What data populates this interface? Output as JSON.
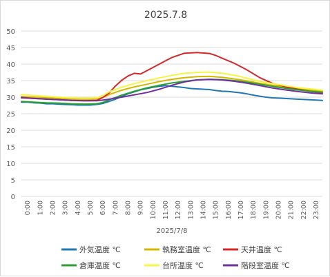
{
  "chart_data": {
    "type": "line",
    "title": "2025.7.8",
    "xlabel": "2025/7/8",
    "ylabel": "",
    "ylim": [
      0,
      50
    ],
    "y_ticks": [
      0,
      5,
      10,
      15,
      20,
      25,
      30,
      35,
      40,
      45,
      50
    ],
    "x_tick_labels": [
      "0:00",
      "1:00",
      "2:00",
      "3:00",
      "4:00",
      "5:00",
      "6:00",
      "7:00",
      "8:00",
      "9:00",
      "10:00",
      "11:00",
      "12:00",
      "13:00",
      "14:00",
      "15:00",
      "16:00",
      "17:00",
      "18:00",
      "19:00",
      "20:00",
      "21:00",
      "22:00",
      "23:00"
    ],
    "x_range_hours": [
      0,
      24
    ],
    "grid": true,
    "legend_position": "bottom",
    "series": [
      {
        "name": "外気温度 ℃",
        "color": "#1f77b4",
        "points": [
          [
            0,
            28.5
          ],
          [
            0.5,
            28.5
          ],
          [
            1,
            28.3
          ],
          [
            1.5,
            28.2
          ],
          [
            2,
            28.0
          ],
          [
            2.5,
            28.0
          ],
          [
            3,
            27.9
          ],
          [
            3.5,
            27.8
          ],
          [
            4,
            27.7
          ],
          [
            4.5,
            27.6
          ],
          [
            5,
            27.6
          ],
          [
            5.5,
            27.6
          ],
          [
            6,
            27.8
          ],
          [
            6.5,
            28.1
          ],
          [
            7,
            28.7
          ],
          [
            7.5,
            29.4
          ],
          [
            8,
            30.2
          ],
          [
            8.5,
            31.0
          ],
          [
            9,
            31.6
          ],
          [
            9.5,
            32.2
          ],
          [
            10,
            32.6
          ],
          [
            10.5,
            33.0
          ],
          [
            11,
            33.3
          ],
          [
            11.5,
            33.5
          ],
          [
            12,
            33.3
          ],
          [
            12.5,
            33.1
          ],
          [
            13,
            32.9
          ],
          [
            13.5,
            32.6
          ],
          [
            14,
            32.5
          ],
          [
            14.5,
            32.4
          ],
          [
            15,
            32.3
          ],
          [
            15.5,
            32.0
          ],
          [
            16,
            31.8
          ],
          [
            16.5,
            31.7
          ],
          [
            17,
            31.5
          ],
          [
            17.5,
            31.3
          ],
          [
            18,
            31.0
          ],
          [
            18.5,
            30.6
          ],
          [
            19,
            30.3
          ],
          [
            19.5,
            30.0
          ],
          [
            20,
            29.8
          ],
          [
            20.5,
            29.7
          ],
          [
            21,
            29.6
          ],
          [
            21.5,
            29.5
          ],
          [
            22,
            29.4
          ],
          [
            22.5,
            29.3
          ],
          [
            23,
            29.2
          ],
          [
            23.5,
            29.1
          ],
          [
            24,
            29.0
          ]
        ]
      },
      {
        "name": "執務室温度 ℃",
        "color": "#d4b800",
        "points": [
          [
            0,
            30.2
          ],
          [
            1,
            30.0
          ],
          [
            2,
            29.8
          ],
          [
            3,
            29.6
          ],
          [
            4,
            29.4
          ],
          [
            5,
            29.3
          ],
          [
            6,
            29.4
          ],
          [
            6.5,
            29.9
          ],
          [
            7,
            30.8
          ],
          [
            8,
            32.1
          ],
          [
            9,
            33.1
          ],
          [
            10,
            33.9
          ],
          [
            11,
            34.7
          ],
          [
            12,
            35.4
          ],
          [
            13,
            35.9
          ],
          [
            14,
            36.2
          ],
          [
            15,
            36.3
          ],
          [
            16,
            36.0
          ],
          [
            17,
            35.5
          ],
          [
            18,
            34.9
          ],
          [
            19,
            34.2
          ],
          [
            20,
            33.6
          ],
          [
            21,
            33.1
          ],
          [
            22,
            32.6
          ],
          [
            23,
            32.2
          ],
          [
            24,
            31.9
          ]
        ]
      },
      {
        "name": "天井温度 ℃",
        "color": "#d62728",
        "points": [
          [
            0,
            29.8
          ],
          [
            1,
            29.6
          ],
          [
            2,
            29.4
          ],
          [
            3,
            29.2
          ],
          [
            4,
            29.0
          ],
          [
            5,
            28.9
          ],
          [
            6,
            29.0
          ],
          [
            6.5,
            29.9
          ],
          [
            7,
            31.3
          ],
          [
            7.5,
            33.4
          ],
          [
            8,
            35.1
          ],
          [
            8.5,
            36.4
          ],
          [
            9,
            37.2
          ],
          [
            9.5,
            37.0
          ],
          [
            10,
            38.0
          ],
          [
            11,
            40.0
          ],
          [
            12,
            42.0
          ],
          [
            13,
            43.3
          ],
          [
            14,
            43.5
          ],
          [
            15,
            43.2
          ],
          [
            15.5,
            42.6
          ],
          [
            16,
            41.8
          ],
          [
            17,
            40.2
          ],
          [
            18,
            38.2
          ],
          [
            19,
            35.9
          ],
          [
            20,
            34.2
          ],
          [
            21,
            33.2
          ],
          [
            22,
            32.4
          ],
          [
            23,
            31.8
          ],
          [
            24,
            31.3
          ]
        ]
      },
      {
        "name": "倉庫温度 ℃",
        "color": "#2ca02c",
        "points": [
          [
            0,
            28.7
          ],
          [
            1,
            28.5
          ],
          [
            2,
            28.3
          ],
          [
            3,
            28.2
          ],
          [
            4,
            28.0
          ],
          [
            5,
            27.9
          ],
          [
            6,
            28.0
          ],
          [
            6.5,
            28.4
          ],
          [
            7,
            29.2
          ],
          [
            8,
            30.6
          ],
          [
            9,
            31.8
          ],
          [
            10,
            32.8
          ],
          [
            11,
            33.6
          ],
          [
            12,
            34.3
          ],
          [
            13,
            34.8
          ],
          [
            14,
            35.2
          ],
          [
            15,
            35.4
          ],
          [
            16,
            35.3
          ],
          [
            17,
            35.0
          ],
          [
            18,
            34.5
          ],
          [
            19,
            33.9
          ],
          [
            20,
            33.3
          ],
          [
            21,
            32.7
          ],
          [
            22,
            32.2
          ],
          [
            23,
            31.8
          ],
          [
            24,
            31.5
          ]
        ]
      },
      {
        "name": "台所温度 ℃",
        "color": "#f5f542",
        "points": [
          [
            0,
            30.8
          ],
          [
            1,
            30.5
          ],
          [
            2,
            30.2
          ],
          [
            3,
            30.0
          ],
          [
            4,
            29.8
          ],
          [
            5,
            29.7
          ],
          [
            6,
            29.8
          ],
          [
            6.5,
            30.5
          ],
          [
            7,
            31.6
          ],
          [
            8,
            33.0
          ],
          [
            9,
            34.1
          ],
          [
            10,
            35.0
          ],
          [
            11,
            35.8
          ],
          [
            12,
            36.6
          ],
          [
            13,
            37.2
          ],
          [
            14,
            37.5
          ],
          [
            15,
            37.6
          ],
          [
            16,
            37.2
          ],
          [
            17,
            36.6
          ],
          [
            18,
            35.7
          ],
          [
            19,
            34.8
          ],
          [
            20,
            34.1
          ],
          [
            21,
            33.5
          ],
          [
            22,
            32.9
          ],
          [
            23,
            32.5
          ],
          [
            24,
            32.1
          ]
        ]
      },
      {
        "name": "階段室温度 ℃",
        "color": "#7030a0",
        "points": [
          [
            0,
            29.9
          ],
          [
            1,
            29.6
          ],
          [
            2,
            29.4
          ],
          [
            3,
            29.2
          ],
          [
            4,
            29.0
          ],
          [
            5,
            28.9
          ],
          [
            6,
            28.9
          ],
          [
            6.5,
            29.1
          ],
          [
            7,
            29.4
          ],
          [
            8,
            30.0
          ],
          [
            9,
            30.7
          ],
          [
            10,
            31.4
          ],
          [
            11,
            32.4
          ],
          [
            12,
            33.6
          ],
          [
            13,
            34.6
          ],
          [
            14,
            35.2
          ],
          [
            15,
            35.4
          ],
          [
            16,
            35.2
          ],
          [
            17,
            34.8
          ],
          [
            18,
            34.2
          ],
          [
            19,
            33.5
          ],
          [
            20,
            32.8
          ],
          [
            21,
            32.2
          ],
          [
            22,
            31.7
          ],
          [
            23,
            31.3
          ],
          [
            24,
            31.0
          ]
        ]
      }
    ]
  }
}
